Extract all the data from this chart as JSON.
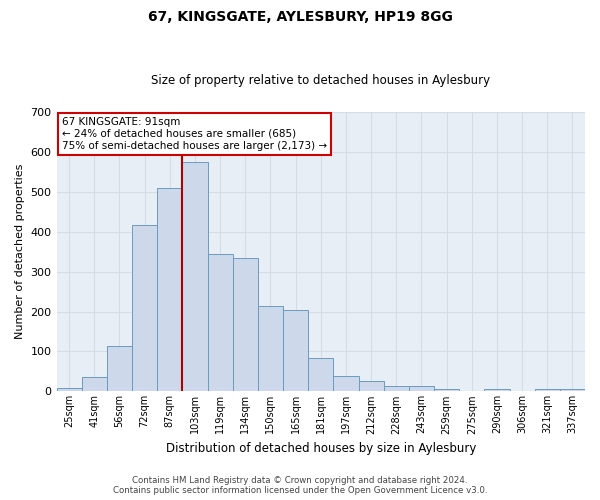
{
  "title": "67, KINGSGATE, AYLESBURY, HP19 8GG",
  "subtitle": "Size of property relative to detached houses in Aylesbury",
  "xlabel": "Distribution of detached houses by size in Aylesbury",
  "ylabel": "Number of detached properties",
  "bar_labels": [
    "25sqm",
    "41sqm",
    "56sqm",
    "72sqm",
    "87sqm",
    "103sqm",
    "119sqm",
    "134sqm",
    "150sqm",
    "165sqm",
    "181sqm",
    "197sqm",
    "212sqm",
    "228sqm",
    "243sqm",
    "259sqm",
    "275sqm",
    "290sqm",
    "306sqm",
    "321sqm",
    "337sqm"
  ],
  "bar_values": [
    8,
    35,
    113,
    417,
    510,
    575,
    345,
    333,
    213,
    204,
    84,
    38,
    26,
    14,
    14,
    5,
    0,
    5,
    0,
    5,
    5
  ],
  "bar_color": "#cdd9ea",
  "bar_edge_color": "#6a9bbf",
  "vline_color": "#aa0000",
  "vline_pos": 4,
  "ylim": [
    0,
    700
  ],
  "yticks": [
    0,
    100,
    200,
    300,
    400,
    500,
    600,
    700
  ],
  "annotation_title": "67 KINGSGATE: 91sqm",
  "annotation_line1": "← 24% of detached houses are smaller (685)",
  "annotation_line2": "75% of semi-detached houses are larger (2,173) →",
  "annotation_box_facecolor": "#ffffff",
  "annotation_box_edgecolor": "#cc0000",
  "footer1": "Contains HM Land Registry data © Crown copyright and database right 2024.",
  "footer2": "Contains public sector information licensed under the Open Government Licence v3.0.",
  "grid_color": "#d5dce8",
  "background_color": "#e8eef5",
  "title_fontsize": 10,
  "subtitle_fontsize": 8.5,
  "xlabel_fontsize": 8.5,
  "ylabel_fontsize": 8
}
